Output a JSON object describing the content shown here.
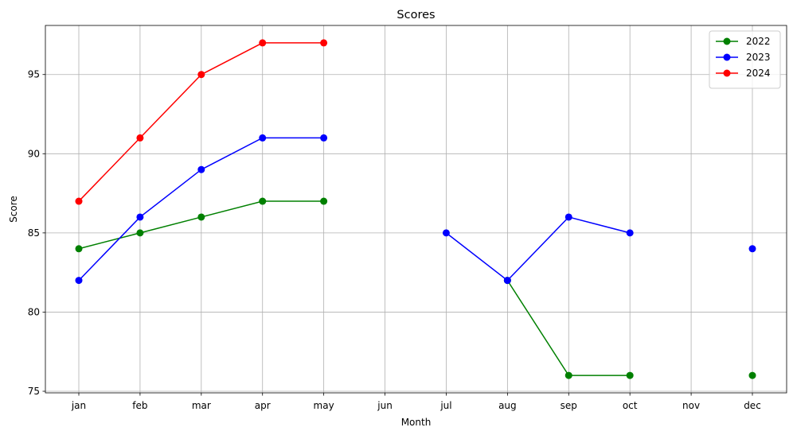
{
  "chart_data": {
    "type": "line",
    "title": "Scores",
    "xlabel": "Month",
    "ylabel": "Score",
    "categories": [
      "jan",
      "feb",
      "mar",
      "apr",
      "may",
      "jun",
      "jul",
      "aug",
      "sep",
      "oct",
      "nov",
      "dec"
    ],
    "yticks": [
      75,
      80,
      85,
      90,
      95
    ],
    "ylim": [
      74.9,
      98.1
    ],
    "grid": true,
    "legend_position": "top-right",
    "series": [
      {
        "name": "2022",
        "color": "#008000",
        "values": [
          84,
          85,
          86,
          87,
          87,
          null,
          null,
          82,
          76,
          76,
          null,
          76
        ]
      },
      {
        "name": "2023",
        "color": "#0000ff",
        "values": [
          82,
          86,
          89,
          91,
          91,
          null,
          85,
          82,
          86,
          85,
          null,
          84
        ]
      },
      {
        "name": "2024",
        "color": "#ff0000",
        "values": [
          87,
          91,
          95,
          97,
          97,
          null,
          null,
          null,
          null,
          null,
          null,
          null
        ]
      }
    ]
  }
}
